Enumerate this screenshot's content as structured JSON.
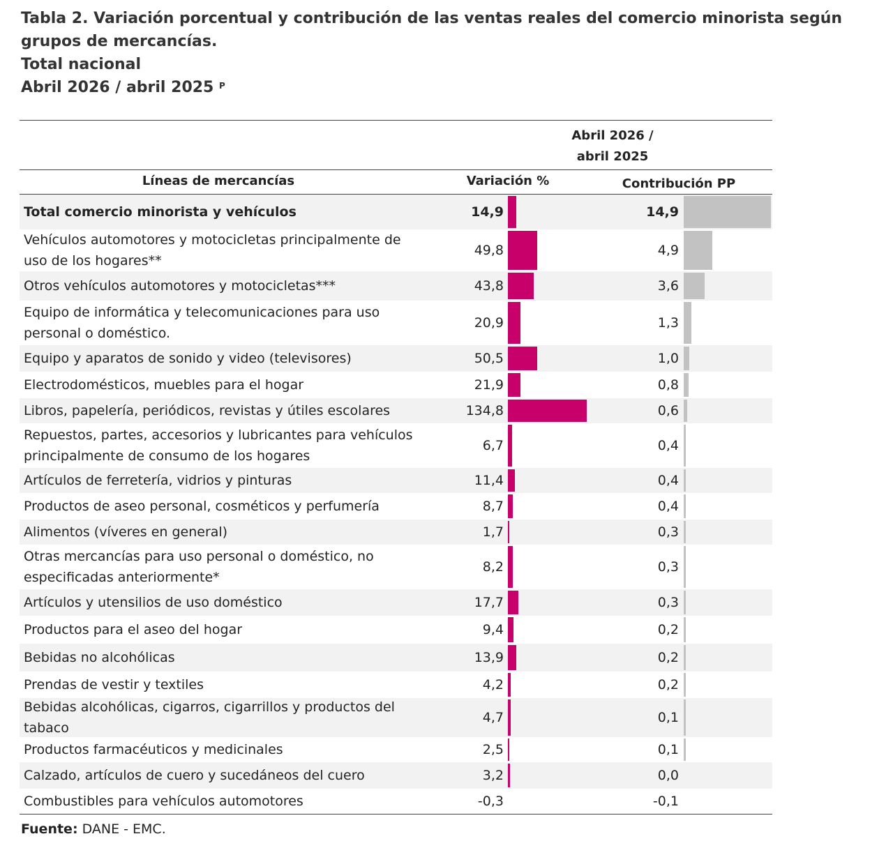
{
  "title": {
    "line1": "Tabla 2. Variación porcentual y contribución de las ventas reales del comercio minorista según grupos de mercancías.",
    "line2": "Total nacional",
    "line3": "Abril 2026 / abril 2025",
    "line3_sup": "P"
  },
  "table": {
    "period_header": "Abril 2026 /\nabril 2025",
    "col_line": "Líneas de mercancías",
    "col_var": "Variación %",
    "col_contrib": "Contribución PP",
    "rows": [
      {
        "label": "Total comercio minorista y vehículos",
        "var": "14,9",
        "var_value": 14.9,
        "contrib": "14,9",
        "contrib_value": 14.9,
        "total": true
      },
      {
        "label": "Vehículos automotores y motocicletas principalmente de uso de los hogares**",
        "var": "49,8",
        "var_value": 49.8,
        "contrib": "4,9",
        "contrib_value": 4.9
      },
      {
        "label": "Otros vehículos automotores y motocicletas***",
        "var": "43,8",
        "var_value": 43.8,
        "contrib": "3,6",
        "contrib_value": 3.6
      },
      {
        "label": "Equipo de informática y telecomunicaciones para uso personal o doméstico.",
        "var": "20,9",
        "var_value": 20.9,
        "contrib": "1,3",
        "contrib_value": 1.3
      },
      {
        "label": "Equipo y aparatos de sonido y video (televisores)",
        "var": "50,5",
        "var_value": 50.5,
        "contrib": "1,0",
        "contrib_value": 1.0
      },
      {
        "label": "Electrodomésticos, muebles para el hogar",
        "var": "21,9",
        "var_value": 21.9,
        "contrib": "0,8",
        "contrib_value": 0.8
      },
      {
        "label": "Libros, papelería, periódicos, revistas y útiles escolares",
        "var": "134,8",
        "var_value": 134.8,
        "contrib": "0,6",
        "contrib_value": 0.6
      },
      {
        "label": "Repuestos, partes, accesorios y lubricantes para vehículos principalmente de consumo de los hogares",
        "var": "6,7",
        "var_value": 6.7,
        "contrib": "0,4",
        "contrib_value": 0.4
      },
      {
        "label": "Artículos de ferretería, vidrios y pinturas",
        "var": "11,4",
        "var_value": 11.4,
        "contrib": "0,4",
        "contrib_value": 0.4
      },
      {
        "label": "Productos de aseo personal, cosméticos y perfumería",
        "var": "8,7",
        "var_value": 8.7,
        "contrib": "0,4",
        "contrib_value": 0.4
      },
      {
        "label": "Alimentos (víveres en general)",
        "var": "1,7",
        "var_value": 1.7,
        "contrib": "0,3",
        "contrib_value": 0.3
      },
      {
        "label": "Otras mercancías para uso personal o doméstico, no especificadas anteriormente*",
        "var": "8,2",
        "var_value": 8.2,
        "contrib": "0,3",
        "contrib_value": 0.3
      },
      {
        "label": "Artículos y utensilios de uso doméstico",
        "var": "17,7",
        "var_value": 17.7,
        "contrib": "0,3",
        "contrib_value": 0.3
      },
      {
        "label": "Productos para el aseo del hogar",
        "var": "9,4",
        "var_value": 9.4,
        "contrib": "0,2",
        "contrib_value": 0.2
      },
      {
        "label": "Bebidas no alcohólicas",
        "var": "13,9",
        "var_value": 13.9,
        "contrib": "0,2",
        "contrib_value": 0.2
      },
      {
        "label": "Prendas de vestir y textiles",
        "var": "4,2",
        "var_value": 4.2,
        "contrib": "0,2",
        "contrib_value": 0.2
      },
      {
        "label": "Bebidas alcohólicas, cigarros, cigarrillos y productos del tabaco",
        "var": "4,7",
        "var_value": 4.7,
        "contrib": "0,1",
        "contrib_value": 0.1
      },
      {
        "label": "Productos farmacéuticos y medicinales",
        "var": "2,5",
        "var_value": 2.5,
        "contrib": "0,1",
        "contrib_value": 0.1
      },
      {
        "label": "Calzado, artículos de cuero y sucedáneos del cuero",
        "var": "3,2",
        "var_value": 3.2,
        "contrib": "0,0",
        "contrib_value": 0.0
      },
      {
        "label": "Combustibles para vehículos automotores",
        "var": "-0,3",
        "var_value": -0.3,
        "contrib": "-0,1",
        "contrib_value": -0.1
      }
    ]
  },
  "colors": {
    "variation_bar": "#c8006a",
    "contribution_bar": "#c2c2c2",
    "row_shade": "#f2f2f2"
  },
  "source": {
    "label": "Fuente:",
    "text": " DANE - EMC."
  }
}
